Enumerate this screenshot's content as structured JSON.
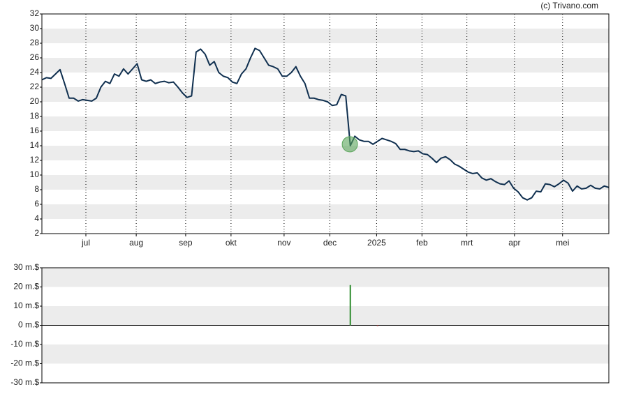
{
  "credit": "(c) Trivano.com",
  "chart_data": [
    {
      "type": "line",
      "series": [
        {
          "color": "#0f2f4f",
          "values": [
            23,
            23.3,
            23.2,
            23.8,
            24.4,
            22.5,
            20.5,
            20.5,
            20.1,
            20.3,
            20.2,
            20.1,
            20.5,
            22,
            22.8,
            22.5,
            23.8,
            23.5,
            24.5,
            23.8,
            24.5,
            25.2,
            23,
            22.8,
            23,
            22.5,
            22.7,
            22.8,
            22.6,
            22.7,
            22,
            21.2,
            20.6,
            20.8,
            26.8,
            27.2,
            26.5,
            25,
            25.5,
            24,
            23.5,
            23.3,
            22.7,
            22.5,
            23.8,
            24.5,
            26,
            27.3,
            27,
            26,
            25,
            24.8,
            24.5,
            23.5,
            23.5,
            24,
            24.8,
            23.5,
            22.5,
            20.5,
            20.5,
            20.3,
            20.2,
            20,
            19.5,
            19.6,
            21,
            20.8,
            14,
            15.3,
            14.8,
            14.6,
            14.6,
            14.2,
            14.6,
            15,
            14.8,
            14.6,
            14.3,
            13.5,
            13.5,
            13.3,
            13.2,
            13.3,
            12.9,
            12.8,
            12.3,
            11.7,
            12.3,
            12.5,
            12.1,
            11.5,
            11.2,
            10.8,
            10.4,
            10.2,
            10.3,
            9.6,
            9.3,
            9.5,
            9.1,
            8.8,
            8.7,
            9.2,
            8.2,
            7.7,
            6.9,
            6.6,
            6.9,
            7.8,
            7.7,
            8.8,
            8.7,
            8.4,
            8.8,
            9.3,
            8.9,
            7.8,
            8.5,
            8.1,
            8.2,
            8.6,
            8.2,
            8.1,
            8.5,
            8.3
          ]
        }
      ],
      "events": [
        {
          "x": 67.9,
          "y": 14.2,
          "color": "#5aa55a"
        }
      ],
      "xlim": [
        0,
        125
      ],
      "xticks": [
        {
          "value": 9.7,
          "label": "jul"
        },
        {
          "value": 20.8,
          "label": "aug"
        },
        {
          "value": 31.7,
          "label": "sep"
        },
        {
          "value": 41.7,
          "label": "okt"
        },
        {
          "value": 53.4,
          "label": "nov"
        },
        {
          "value": 63.5,
          "label": "dec"
        },
        {
          "value": 73.8,
          "label": "2025"
        },
        {
          "value": 83.8,
          "label": "feb"
        },
        {
          "value": 93.7,
          "label": "mrt"
        },
        {
          "value": 104.2,
          "label": "apr"
        },
        {
          "value": 114.8,
          "label": "mei"
        }
      ],
      "ylim": [
        2,
        32
      ],
      "yticks": [
        2,
        4,
        6,
        8,
        10,
        12,
        14,
        16,
        18,
        20,
        22,
        24,
        26,
        28,
        30,
        32
      ],
      "grid": true
    },
    {
      "type": "bar",
      "x": [
        68,
        74
      ],
      "values": [
        21,
        -0.3
      ],
      "colors": [
        "#2e8b2e",
        "#c03030"
      ],
      "xlim": [
        0,
        125
      ],
      "ylim": [
        -30,
        30
      ],
      "yticks": [
        {
          "value": 30,
          "label": "30 m.$"
        },
        {
          "value": 20,
          "label": "20 m.$"
        },
        {
          "value": 10,
          "label": "10 m.$"
        },
        {
          "value": 0,
          "label": "0 m.$"
        },
        {
          "value": -10,
          "label": "-10 m.$"
        },
        {
          "value": -20,
          "label": "-20 m.$"
        },
        {
          "value": -30,
          "label": "-30 m.$"
        }
      ]
    }
  ]
}
